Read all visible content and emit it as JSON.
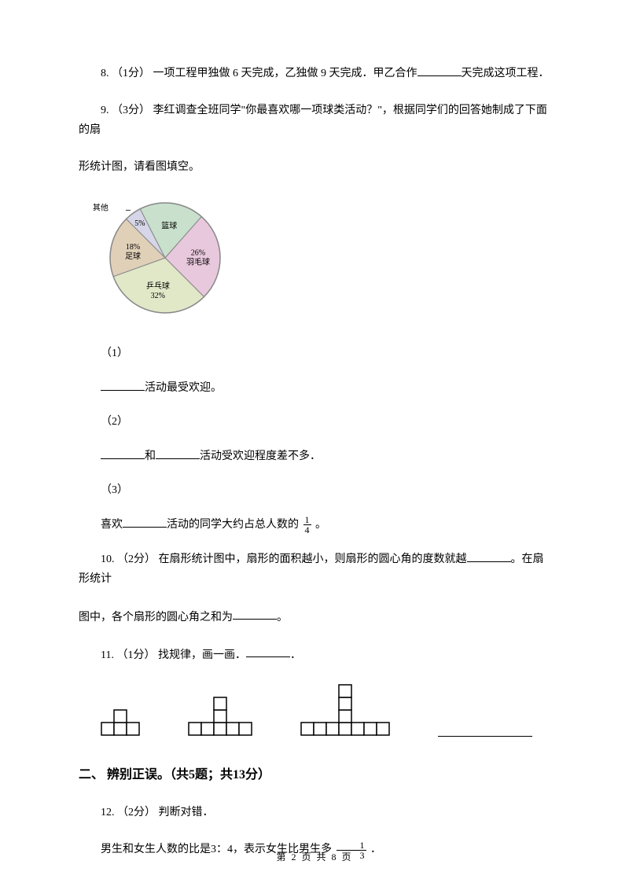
{
  "questions": {
    "q8": {
      "number": "8.",
      "points": "（1分）",
      "text_before": "一项工程甲独做 6 天完成，乙独做 9 天完成．甲乙合作",
      "text_after": "天完成这项工程．"
    },
    "q9": {
      "number": "9.",
      "points": "（3分）",
      "text_line1": "李红调查全班同学\"你最喜欢哪一项球类活动？\"，根据同学们的回答她制成了下面的扇",
      "text_line2": "形统计图，请看图填空。",
      "pie": {
        "type": "pie",
        "slices": [
          {
            "name": "其他",
            "label": "其他",
            "percent_label": "5%",
            "value": 5,
            "color": "#d6d6e8"
          },
          {
            "name": "篮球",
            "label": "篮球",
            "percent_label": "19%",
            "value": 19,
            "color": "#c8e0cc"
          },
          {
            "name": "羽毛球",
            "label": "26%\n羽毛球",
            "percent_label": "26%",
            "value": 26,
            "color": "#e8c8dc"
          },
          {
            "name": "乒乓球",
            "label": "乒乓球\n32%",
            "percent_label": "32%",
            "value": 32,
            "color": "#e0e8c8"
          },
          {
            "name": "足球",
            "label": "18%\n足球",
            "percent_label": "18%",
            "value": 18,
            "color": "#e0d0b8"
          }
        ],
        "border_color": "#888888",
        "radius": 70,
        "center_marker": true,
        "external_labels": {
          "其他": {
            "text": "其他",
            "anchor": "right"
          }
        }
      },
      "sub1": {
        "num": "（1）",
        "answer_suffix": "活动最受欢迎。"
      },
      "sub2": {
        "num": "（2）",
        "answer_mid": "和",
        "answer_suffix": "活动受欢迎程度差不多．"
      },
      "sub3": {
        "num": "（3）",
        "answer_prefix": "喜欢",
        "answer_mid": "活动的同学大约占总人数的",
        "frac_num": "1",
        "frac_den": "4",
        "answer_suffix": " 。"
      }
    },
    "q10": {
      "number": "10.",
      "points": "（2分）",
      "text_before": "在扇形统计图中，扇形的面积越小，则扇形的圆心角的度数就越",
      "text_mid": "。在扇形统计",
      "text_line2_before": "图中，各个扇形的圆心角之和为",
      "text_after": "。"
    },
    "q11": {
      "number": "11.",
      "points": "（1分）",
      "text": "找规律，画一画．",
      "period": "．",
      "patterns": {
        "cell_size": 16,
        "stroke": "#000000",
        "fill": "#ffffff",
        "p1_cols": 3,
        "p2_cols": 5,
        "p2_tower": 1,
        "p3_cols": 7,
        "p3_tower": 2
      }
    },
    "section2": {
      "title": "二、 辨别正误。（共5题；共13分）"
    },
    "q12": {
      "number": "12.",
      "points": "（2分）",
      "text": "判断对错．",
      "text2_before": "男生和女生人数的比是3：4，表示女生比男生多",
      "frac_num": "1",
      "frac_den": "3",
      "text2_after": " ．"
    }
  },
  "footer": {
    "text": "第 2 页 共 8 页"
  }
}
